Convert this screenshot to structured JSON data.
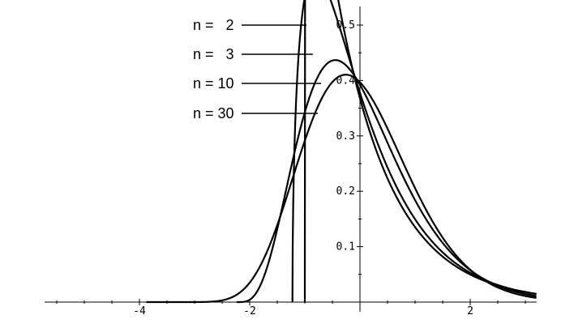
{
  "chart_data": {
    "type": "line",
    "title": "",
    "xlabel": "",
    "ylabel": "",
    "xlim": [
      -5.7,
      3.2
    ],
    "ylim": [
      0,
      0.53
    ],
    "xticks": [
      {
        "value": -4,
        "label": "-4"
      },
      {
        "value": -2,
        "label": "-2"
      },
      {
        "value": 2,
        "label": "2"
      }
    ],
    "yticks": [
      {
        "value": 0.1,
        "label": "0.1"
      },
      {
        "value": 0.2,
        "label": "0.2"
      },
      {
        "value": 0.3,
        "label": "0.3"
      },
      {
        "value": 0.4,
        "label": "0.4"
      },
      {
        "value": 0.5,
        "label": "0.5"
      }
    ],
    "grid": false,
    "legend": "top-left, callout labels with leader lines",
    "series": [
      {
        "name": "n =   2",
        "n": 2
      },
      {
        "name": "n =   3",
        "n": 3
      },
      {
        "name": "n = 10",
        "n": 10
      },
      {
        "name": "n = 30",
        "n": 30
      }
    ],
    "x": [
      -5.7,
      -5.0,
      -4.5,
      -4.0,
      -3.5,
      -3.0,
      -2.5,
      -2.0,
      -1.8,
      -1.6,
      -1.5,
      -1.4,
      -1.2,
      -1.0,
      -0.8,
      -0.6,
      -0.4,
      -0.2,
      0.0,
      0.2,
      0.4,
      0.6,
      0.8,
      1.0,
      1.2,
      1.5,
      2.0,
      2.5,
      3.0
    ],
    "line_color": "#000000"
  }
}
